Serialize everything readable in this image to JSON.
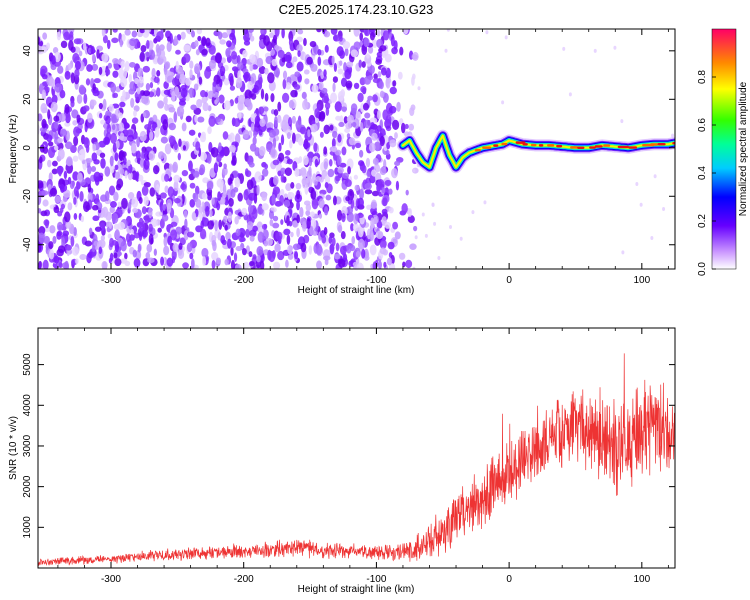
{
  "title": "C2E5.2025.174.23.10.G23",
  "chart_data": [
    {
      "type": "heatmap",
      "xlabel": "Height of straight line (km)",
      "ylabel": "Frequency (Hz)",
      "xlim": [
        -355,
        125
      ],
      "ylim": [
        -50,
        49
      ],
      "xticks": [
        -300,
        -200,
        -100,
        0,
        100
      ],
      "yticks": [
        -40,
        -20,
        0,
        20,
        40
      ],
      "noise_region_x": [
        -355,
        -75
      ],
      "carrier_trace": {
        "x": [
          -80,
          -75,
          -70,
          -65,
          -60,
          -55,
          -50,
          -45,
          -40,
          -35,
          -30,
          -25,
          -20,
          -15,
          -10,
          -5,
          0,
          10,
          20,
          30,
          40,
          50,
          60,
          70,
          80,
          90,
          100,
          110,
          120,
          125
        ],
        "y": [
          1,
          3,
          -2,
          -6,
          -8,
          0,
          5,
          -3,
          -8,
          -4,
          -2,
          -1,
          0,
          0.5,
          1,
          1.5,
          3,
          1.5,
          1,
          1,
          0.5,
          0,
          0,
          1,
          0.5,
          0,
          1,
          1.5,
          1.5,
          2
        ]
      },
      "colorbar": {
        "label": "Normalized spectral amplitude",
        "range": [
          0,
          1
        ],
        "ticks": [
          0.0,
          0.2,
          0.4,
          0.6,
          0.8
        ],
        "tick_labels": [
          "0.0",
          "0.2",
          "0.4",
          "0.6",
          "0.8"
        ]
      }
    },
    {
      "type": "line",
      "xlabel": "Height of straight line (km)",
      "ylabel": "SNR (10 * v/v)",
      "xlim": [
        -355,
        125
      ],
      "ylim": [
        0,
        5900
      ],
      "xticks": [
        -300,
        -200,
        -100,
        0,
        100
      ],
      "yticks": [
        1000,
        2000,
        3000,
        4000,
        5000
      ],
      "series": [
        {
          "color": "#ee3333",
          "x": [
            -355,
            -340,
            -320,
            -300,
            -280,
            -260,
            -240,
            -220,
            -200,
            -180,
            -160,
            -140,
            -120,
            -100,
            -80,
            -60,
            -50,
            -40,
            -30,
            -20,
            -10,
            0,
            10,
            20,
            30,
            40,
            50,
            60,
            70,
            80,
            90,
            100,
            110,
            120,
            125
          ],
          "y": [
            150,
            170,
            190,
            220,
            280,
            330,
            360,
            380,
            400,
            450,
            520,
            420,
            410,
            400,
            420,
            600,
            900,
            1300,
            1500,
            1800,
            2100,
            2300,
            2700,
            2900,
            3100,
            3400,
            3600,
            3300,
            3200,
            3000,
            3100,
            3300,
            3500,
            3200,
            3300
          ],
          "spread": [
            100,
            110,
            120,
            130,
            150,
            170,
            180,
            190,
            200,
            220,
            250,
            230,
            220,
            200,
            300,
            500,
            700,
            800,
            800,
            900,
            900,
            900,
            900,
            900,
            1000,
            1000,
            1100,
            1200,
            1300,
            1400,
            1400,
            1500,
            1500,
            1500,
            1500
          ]
        }
      ]
    }
  ]
}
